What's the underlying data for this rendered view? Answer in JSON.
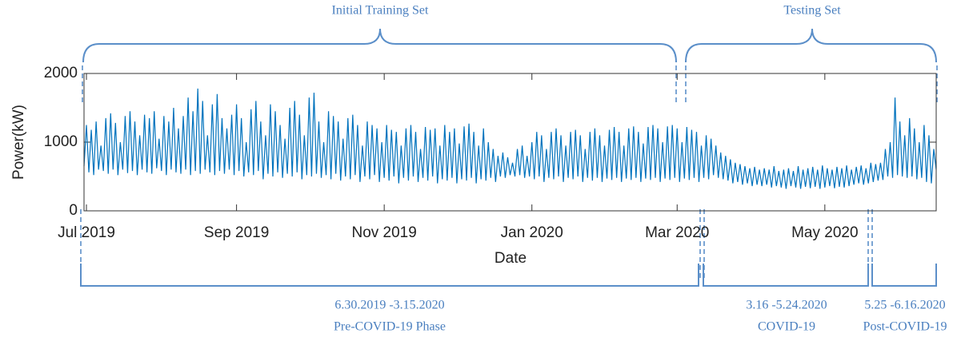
{
  "chart_data": {
    "type": "line",
    "x_label": "Date",
    "y_label": "Power(kW)",
    "annotations": {
      "training": "Initial Training Set",
      "testing": "Testing Set",
      "pre_dates": "6.30.2019 -3.15.2020",
      "pre_phase": "Pre-COVID-19 Phase",
      "covid_dates": "3.16 -5.24.2020",
      "covid_phase": "COVID-19",
      "post_dates": "5.25 -6.16.2020",
      "post_phase": "Post-COVID-19"
    },
    "xlim": [
      0,
      352
    ],
    "xticks": [
      {
        "value": 1,
        "label": "Jul 2019"
      },
      {
        "value": 63,
        "label": "Sep 2019"
      },
      {
        "value": 124,
        "label": "Nov 2019"
      },
      {
        "value": 185,
        "label": "Jan 2020"
      },
      {
        "value": 245,
        "label": "Mar 2020"
      },
      {
        "value": 306,
        "label": "May 2020"
      }
    ],
    "ylim": [
      0,
      2000
    ],
    "yticks": [
      0,
      1000,
      2000
    ],
    "series": [
      {
        "color": "#0072bd",
        "x": [
          0,
          1,
          2,
          3,
          4,
          5,
          6,
          7,
          8,
          9,
          10,
          11,
          12,
          13,
          14,
          15,
          16,
          17,
          18,
          19,
          20,
          21,
          22,
          23,
          24,
          25,
          26,
          27,
          28,
          29,
          30,
          31,
          32,
          33,
          34,
          35,
          36,
          37,
          38,
          39,
          40,
          41,
          42,
          43,
          44,
          45,
          46,
          47,
          48,
          49,
          50,
          51,
          52,
          53,
          54,
          55,
          56,
          57,
          58,
          59,
          60,
          61,
          62,
          63,
          64,
          65,
          66,
          67,
          68,
          69,
          70,
          71,
          72,
          73,
          74,
          75,
          76,
          77,
          78,
          79,
          80,
          81,
          82,
          83,
          84,
          85,
          86,
          87,
          88,
          89,
          90,
          91,
          92,
          93,
          94,
          95,
          96,
          97,
          98,
          99,
          100,
          101,
          102,
          103,
          104,
          105,
          106,
          107,
          108,
          109,
          110,
          111,
          112,
          113,
          114,
          115,
          116,
          117,
          118,
          119,
          120,
          121,
          122,
          123,
          124,
          125,
          126,
          127,
          128,
          129,
          130,
          131,
          132,
          133,
          134,
          135,
          136,
          137,
          138,
          139,
          140,
          141,
          142,
          143,
          144,
          145,
          146,
          147,
          148,
          149,
          150,
          151,
          152,
          153,
          154,
          155,
          156,
          157,
          158,
          159,
          160,
          161,
          162,
          163,
          164,
          165,
          166,
          167,
          168,
          169,
          170,
          171,
          172,
          173,
          174,
          175,
          176,
          177,
          178,
          179,
          180,
          181,
          182,
          183,
          184,
          185,
          186,
          187,
          188,
          189,
          190,
          191,
          192,
          193,
          194,
          195,
          196,
          197,
          198,
          199,
          200,
          201,
          202,
          203,
          204,
          205,
          206,
          207,
          208,
          209,
          210,
          211,
          212,
          213,
          214,
          215,
          216,
          217,
          218,
          219,
          220,
          221,
          222,
          223,
          224,
          225,
          226,
          227,
          228,
          229,
          230,
          231,
          232,
          233,
          234,
          235,
          236,
          237,
          238,
          239,
          240,
          241,
          242,
          243,
          244,
          245,
          246,
          247,
          248,
          249,
          250,
          251,
          252,
          253,
          254,
          255,
          256,
          257,
          258,
          259,
          260,
          261,
          262,
          263,
          264,
          265,
          266,
          267,
          268,
          269,
          270,
          271,
          272,
          273,
          274,
          275,
          276,
          277,
          278,
          279,
          280,
          281,
          282,
          283,
          284,
          285,
          286,
          287,
          288,
          289,
          290,
          291,
          292,
          293,
          294,
          295,
          296,
          297,
          298,
          299,
          300,
          301,
          302,
          303,
          304,
          305,
          306,
          307,
          308,
          309,
          310,
          311,
          312,
          313,
          314,
          315,
          316,
          317,
          318,
          319,
          320,
          321,
          322,
          323,
          324,
          325,
          326,
          327,
          328,
          329,
          330,
          331,
          332,
          333,
          334,
          335,
          336,
          337,
          338,
          339,
          340,
          341,
          342,
          343,
          344,
          345,
          346,
          347,
          348,
          349,
          350,
          351,
          352
        ],
        "values": [
          650,
          1250,
          560,
          1180,
          520,
          1300,
          600,
          950,
          580,
          1350,
          540,
          1420,
          600,
          1280,
          520,
          1000,
          600,
          1380,
          550,
          1450,
          580,
          1300,
          520,
          1100,
          600,
          1400,
          560,
          1350,
          540,
          1450,
          620,
          1050,
          580,
          1380,
          520,
          1300,
          600,
          1500,
          560,
          1200,
          540,
          1380,
          600,
          1650,
          520,
          1450,
          580,
          1780,
          540,
          1600,
          600,
          1100,
          560,
          1550,
          520,
          1700,
          580,
          1350,
          540,
          1200,
          600,
          1400,
          520,
          1550,
          580,
          1350,
          500,
          1000,
          560,
          1480,
          520,
          1600,
          580,
          1300,
          460,
          1100,
          540,
          1550,
          500,
          1450,
          560,
          1250,
          480,
          1050,
          540,
          1500,
          500,
          1600,
          560,
          1400,
          460,
          1100,
          520,
          1650,
          500,
          1720,
          540,
          1300,
          480,
          1000,
          520,
          1450,
          460,
          1380,
          540,
          1300,
          440,
          1050,
          500,
          1350,
          460,
          1400,
          520,
          1250,
          420,
          950,
          500,
          1300,
          460,
          1250,
          520,
          1200,
          420,
          1000,
          480,
          1250,
          440,
          1180,
          500,
          1150,
          400,
          950,
          480,
          1200,
          440,
          1250,
          500,
          1150,
          420,
          900,
          480,
          1220,
          440,
          1180,
          500,
          1200,
          400,
          950,
          460,
          1250,
          440,
          1150,
          480,
          1200,
          400,
          980,
          460,
          1230,
          440,
          1270,
          480,
          1150,
          400,
          950,
          460,
          1200,
          440,
          1000,
          480,
          900,
          420,
          800,
          500,
          850,
          480,
          780,
          520,
          700,
          500,
          900,
          520,
          950,
          480,
          800,
          500,
          1000,
          460,
          1150,
          500,
          1100,
          420,
          900,
          480,
          1150,
          460,
          1200,
          500,
          1100,
          420,
          950,
          480,
          1150,
          460,
          1180,
          500,
          1100,
          420,
          900,
          480,
          1150,
          440,
          1200,
          480,
          1100,
          420,
          950,
          470,
          1180,
          450,
          1220,
          480,
          1150,
          420,
          950,
          470,
          1200,
          450,
          1230,
          480,
          1150,
          420,
          980,
          470,
          1220,
          450,
          1250,
          480,
          1200,
          420,
          1000,
          470,
          1230,
          450,
          1250,
          480,
          1200,
          420,
          1000,
          470,
          1220,
          450,
          1180,
          480,
          1150,
          420,
          950,
          480,
          1100,
          460,
          1050,
          520,
          950,
          480,
          850,
          460,
          800,
          440,
          750,
          400,
          700,
          420,
          680,
          380,
          650,
          400,
          620,
          360,
          640,
          380,
          600,
          360,
          620,
          380,
          600,
          340,
          650,
          360,
          580,
          340,
          600,
          320,
          620,
          360,
          580,
          340,
          650,
          320,
          600,
          350,
          620,
          330,
          640,
          350,
          600,
          320,
          660,
          340,
          620,
          360,
          600,
          330,
          640,
          350,
          620,
          340,
          660,
          360,
          600,
          380,
          640,
          400,
          660,
          380,
          620,
          400,
          700,
          420,
          680,
          440,
          700,
          450,
          900,
          500,
          1000,
          480,
          1650,
          520,
          1300,
          500,
          1100,
          480,
          1350,
          500,
          1200,
          460,
          1000,
          480,
          1250,
          420,
          1100,
          400,
          900,
          600
        ]
      }
    ]
  }
}
